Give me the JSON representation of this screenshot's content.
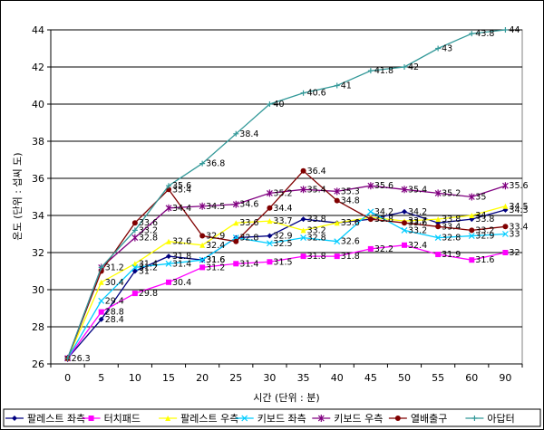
{
  "chart_data": {
    "type": "line",
    "title": "",
    "xlabel": "시간 (단위 : 분)",
    "ylabel": "온도 (단위 : 섭씨 도)",
    "categories": [
      "0",
      "5",
      "10",
      "15",
      "20",
      "25",
      "30",
      "35",
      "40",
      "45",
      "50",
      "55",
      "60",
      "90"
    ],
    "ylim": [
      26,
      44
    ],
    "yticks": [
      "26",
      "28",
      "30",
      "32",
      "34",
      "36",
      "38",
      "40",
      "42",
      "44"
    ],
    "grid": "horizontal",
    "legend_position": "bottom",
    "series": [
      {
        "name": "팔레스트 좌측",
        "color": "#000080",
        "marker": "diamond",
        "values": [
          26.3,
          28.4,
          31.0,
          31.8,
          31.6,
          32.8,
          32.9,
          33.8,
          33.6,
          33.8,
          34.2,
          33.6,
          33.8,
          34.3
        ],
        "labels": [
          "",
          "28.4",
          "31",
          "31.8",
          "31.6",
          "32.8",
          "32.9",
          "33.8",
          "",
          "",
          "34.2",
          "",
          "33.8",
          "34.3"
        ]
      },
      {
        "name": "터치패드",
        "color": "#FF00FF",
        "marker": "square",
        "values": [
          26.3,
          28.8,
          29.8,
          30.4,
          31.2,
          31.4,
          31.5,
          31.8,
          31.8,
          32.2,
          32.4,
          31.9,
          31.6,
          32.0
        ],
        "labels": [
          "",
          "28.8",
          "29.8",
          "30.4",
          "31.2",
          "31.4",
          "31.5",
          "31.8",
          "31.8",
          "32.2",
          "32.4",
          "31.9",
          "31.6",
          "32"
        ]
      },
      {
        "name": "팔레스트 우측",
        "color": "#FFFF00",
        "marker": "triangle",
        "values": [
          26.3,
          30.4,
          31.4,
          32.6,
          32.4,
          33.6,
          33.7,
          33.2,
          33.6,
          33.9,
          33.7,
          33.8,
          34.0,
          34.5
        ],
        "labels": [
          "",
          "30.4",
          "31.4",
          "32.6",
          "32.4",
          "33.6",
          "33.7",
          "33.2",
          "33.6",
          "",
          "33.7",
          "33.8",
          "34",
          "34.5"
        ]
      },
      {
        "name": "키보드 좌측",
        "color": "#00CCFF",
        "marker": "x",
        "values": [
          26.3,
          29.4,
          31.2,
          31.4,
          31.6,
          32.8,
          32.5,
          32.8,
          32.6,
          34.2,
          33.2,
          32.8,
          32.9,
          33.0
        ],
        "labels": [
          "",
          "29.4",
          "31.2",
          "31.4",
          "31.6",
          "",
          "32.5",
          "32.8",
          "32.6",
          "34.2",
          "33.2",
          "32.8",
          "32.9",
          "33"
        ]
      },
      {
        "name": "키보드 우측",
        "color": "#800080",
        "marker": "star",
        "values": [
          26.3,
          31.2,
          32.8,
          34.4,
          34.5,
          34.6,
          35.2,
          35.4,
          35.3,
          35.6,
          35.4,
          35.2,
          35.0,
          35.6
        ],
        "labels": [
          "",
          "31.2",
          "32.8",
          "34.4",
          "34.5",
          "34.6",
          "35.2",
          "35.4",
          "35.3",
          "35.6",
          "35.4",
          "35.2",
          "35",
          "35.6"
        ]
      },
      {
        "name": "열배출구",
        "color": "#800000",
        "marker": "circle",
        "values": [
          26.3,
          31.0,
          33.6,
          35.4,
          32.9,
          32.6,
          34.4,
          36.4,
          34.8,
          33.8,
          33.6,
          33.4,
          33.2,
          33.4
        ],
        "labels": [
          "",
          "",
          "33.6",
          "35.4",
          "32.9",
          "",
          "34.4",
          "36.4",
          "34.8",
          "33.8",
          "33.6",
          "33.4",
          "33.2",
          "33.4"
        ]
      },
      {
        "name": "아답터",
        "color": "#339999",
        "marker": "plus",
        "values": [
          26.3,
          31.2,
          33.2,
          35.6,
          36.8,
          38.4,
          40.0,
          40.6,
          41.0,
          41.8,
          42.0,
          43.0,
          43.8,
          44.0
        ],
        "labels": [
          "26.3",
          "",
          "33.2",
          "35.6",
          "36.8",
          "38.4",
          "40",
          "40.6",
          "41",
          "41.8",
          "42",
          "43",
          "43.8",
          "44"
        ]
      }
    ]
  }
}
